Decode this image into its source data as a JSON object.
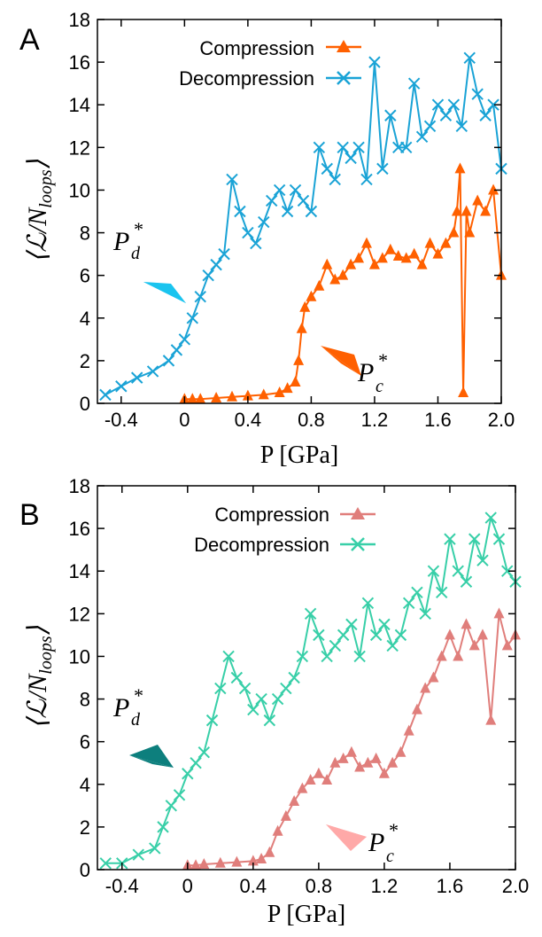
{
  "chart_data": [
    {
      "panel": "A",
      "type": "line",
      "xlabel": "P [GPa]",
      "ylabel": "⟨ℒ/N_loops⟩",
      "xlim": [
        -0.55,
        2.0
      ],
      "ylim": [
        0,
        18
      ],
      "x_ticks": [
        "-0.4",
        "0",
        "0.4",
        "0.8",
        "1.2",
        "1.6",
        "2.0"
      ],
      "y_ticks": [
        "0",
        "2",
        "4",
        "6",
        "8",
        "10",
        "12",
        "14",
        "16",
        "18"
      ],
      "legend_position": "top-right",
      "series": [
        {
          "name": "Compression",
          "marker": "triangle",
          "color": "#ff6000",
          "x": [
            0.0,
            0.05,
            0.1,
            0.2,
            0.3,
            0.4,
            0.5,
            0.6,
            0.65,
            0.7,
            0.72,
            0.74,
            0.76,
            0.8,
            0.85,
            0.9,
            0.95,
            1.0,
            1.05,
            1.1,
            1.15,
            1.2,
            1.25,
            1.3,
            1.35,
            1.4,
            1.45,
            1.5,
            1.55,
            1.6,
            1.65,
            1.7,
            1.72,
            1.74,
            1.76,
            1.78,
            1.8,
            1.85,
            1.9,
            1.95,
            2.0
          ],
          "y": [
            0.2,
            0.2,
            0.2,
            0.25,
            0.3,
            0.35,
            0.4,
            0.5,
            0.7,
            1.0,
            2.0,
            3.5,
            4.5,
            5.0,
            5.5,
            6.5,
            5.8,
            6.0,
            6.5,
            6.8,
            7.5,
            6.5,
            6.8,
            7.2,
            6.9,
            6.8,
            7.0,
            6.5,
            7.5,
            7.0,
            7.5,
            8.0,
            9.0,
            11.0,
            0.5,
            9.0,
            8.0,
            9.5,
            9.0,
            10.0,
            6.0
          ]
        },
        {
          "name": "Decompression",
          "marker": "x",
          "color": "#1aa3d6",
          "x": [
            2.0,
            1.95,
            1.9,
            1.85,
            1.8,
            1.75,
            1.7,
            1.65,
            1.6,
            1.55,
            1.5,
            1.45,
            1.4,
            1.35,
            1.3,
            1.25,
            1.2,
            1.15,
            1.1,
            1.05,
            1.0,
            0.95,
            0.9,
            0.85,
            0.8,
            0.75,
            0.7,
            0.65,
            0.6,
            0.55,
            0.5,
            0.45,
            0.4,
            0.35,
            0.3,
            0.25,
            0.2,
            0.15,
            0.1,
            0.05,
            0.0,
            -0.05,
            -0.1,
            -0.2,
            -0.3,
            -0.4,
            -0.5
          ],
          "y": [
            11.0,
            14.0,
            13.5,
            14.5,
            16.2,
            13.0,
            14.0,
            13.5,
            14.0,
            13.0,
            12.5,
            15.0,
            12.0,
            12.0,
            13.5,
            11.0,
            16.0,
            10.5,
            12.0,
            11.5,
            12.0,
            10.5,
            11.0,
            12.0,
            9.0,
            9.5,
            10.0,
            9.0,
            10.0,
            9.5,
            8.5,
            7.5,
            8.0,
            9.0,
            10.5,
            7.0,
            6.5,
            6.0,
            5.0,
            4.0,
            3.0,
            2.5,
            2.0,
            1.5,
            1.2,
            0.8,
            0.4
          ]
        }
      ],
      "annotations": [
        {
          "symbol": "P",
          "sub": "d",
          "sup": "*",
          "arrow_color": "#1ac4ef"
        },
        {
          "symbol": "P",
          "sub": "c",
          "sup": "*",
          "arrow_color": "#ff6000"
        }
      ]
    },
    {
      "panel": "B",
      "type": "line",
      "xlabel": "P [GPa]",
      "ylabel": "⟨ℒ/N_loops⟩",
      "xlim": [
        -0.55,
        2.0
      ],
      "ylim": [
        0,
        18
      ],
      "x_ticks": [
        "-0.4",
        "0",
        "0.4",
        "0.8",
        "1.2",
        "1.6",
        "2.0"
      ],
      "y_ticks": [
        "0",
        "2",
        "4",
        "6",
        "8",
        "10",
        "12",
        "14",
        "16",
        "18"
      ],
      "legend_position": "top-right",
      "series": [
        {
          "name": "Compression",
          "marker": "triangle",
          "color": "#e07e7b",
          "x": [
            0.0,
            0.05,
            0.1,
            0.2,
            0.3,
            0.4,
            0.45,
            0.5,
            0.55,
            0.6,
            0.65,
            0.7,
            0.75,
            0.8,
            0.85,
            0.9,
            0.95,
            1.0,
            1.05,
            1.1,
            1.15,
            1.2,
            1.25,
            1.3,
            1.35,
            1.4,
            1.45,
            1.5,
            1.55,
            1.6,
            1.65,
            1.7,
            1.75,
            1.8,
            1.85,
            1.9,
            1.95,
            2.0
          ],
          "y": [
            0.2,
            0.2,
            0.25,
            0.3,
            0.35,
            0.4,
            0.5,
            0.8,
            1.8,
            2.5,
            3.2,
            3.8,
            4.2,
            4.5,
            4.2,
            5.0,
            5.2,
            5.5,
            4.8,
            5.0,
            5.2,
            4.5,
            5.0,
            5.5,
            6.5,
            7.5,
            8.5,
            9.0,
            10.0,
            11.0,
            10.0,
            11.5,
            10.5,
            11.0,
            7.0,
            12.0,
            10.5,
            11.0
          ]
        },
        {
          "name": "Decompression",
          "marker": "x",
          "color": "#38cfa8",
          "x": [
            2.0,
            1.95,
            1.9,
            1.85,
            1.8,
            1.75,
            1.7,
            1.65,
            1.6,
            1.55,
            1.5,
            1.45,
            1.4,
            1.35,
            1.3,
            1.25,
            1.2,
            1.15,
            1.1,
            1.05,
            1.0,
            0.95,
            0.9,
            0.85,
            0.8,
            0.75,
            0.7,
            0.65,
            0.6,
            0.55,
            0.5,
            0.45,
            0.4,
            0.35,
            0.3,
            0.25,
            0.2,
            0.15,
            0.1,
            0.05,
            0.0,
            -0.05,
            -0.1,
            -0.15,
            -0.2,
            -0.3,
            -0.4,
            -0.5
          ],
          "y": [
            13.5,
            14.0,
            15.5,
            16.5,
            14.5,
            15.5,
            13.5,
            14.0,
            15.5,
            13.0,
            14.0,
            12.0,
            13.0,
            12.5,
            11.0,
            10.5,
            11.5,
            11.0,
            12.5,
            10.0,
            11.5,
            11.0,
            10.5,
            10.0,
            11.0,
            12.0,
            10.0,
            9.0,
            8.5,
            8.0,
            7.0,
            8.0,
            7.5,
            8.5,
            9.0,
            10.0,
            8.5,
            7.0,
            5.5,
            5.0,
            4.5,
            3.5,
            3.0,
            2.0,
            1.0,
            0.7,
            0.3,
            0.3
          ]
        }
      ],
      "annotations": [
        {
          "symbol": "P",
          "sub": "d",
          "sup": "*",
          "arrow_color": "#0d7f7d"
        },
        {
          "symbol": "P",
          "sub": "c",
          "sup": "*",
          "arrow_color": "#ffa9a8"
        }
      ]
    }
  ]
}
